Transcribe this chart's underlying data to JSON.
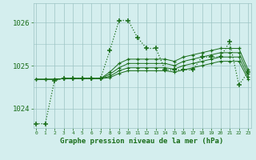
{
  "x": [
    0,
    1,
    2,
    3,
    4,
    5,
    6,
    7,
    8,
    9,
    10,
    11,
    12,
    13,
    14,
    15,
    16,
    17,
    18,
    19,
    20,
    21,
    22,
    23
  ],
  "line_dotted": [
    1023.65,
    1023.65,
    1024.65,
    1024.7,
    1024.7,
    1024.7,
    1024.7,
    1024.7,
    1025.35,
    1026.05,
    1026.05,
    1025.65,
    1025.4,
    1025.4,
    1024.9,
    1024.9,
    1024.9,
    1024.9,
    1025.2,
    1025.2,
    1025.2,
    1025.55,
    1024.55,
    1024.85
  ],
  "line_a": [
    1024.68,
    1024.68,
    1024.68,
    1024.7,
    1024.7,
    1024.7,
    1024.7,
    1024.7,
    1024.85,
    1025.05,
    1025.15,
    1025.15,
    1025.15,
    1025.15,
    1025.15,
    1025.1,
    1025.2,
    1025.25,
    1025.3,
    1025.35,
    1025.4,
    1025.4,
    1025.4,
    1024.9
  ],
  "line_b": [
    1024.68,
    1024.68,
    1024.68,
    1024.7,
    1024.7,
    1024.7,
    1024.7,
    1024.7,
    1024.8,
    1024.95,
    1025.05,
    1025.05,
    1025.05,
    1025.05,
    1025.05,
    1025.0,
    1025.1,
    1025.15,
    1025.2,
    1025.25,
    1025.3,
    1025.3,
    1025.3,
    1024.82
  ],
  "line_c": [
    1024.68,
    1024.68,
    1024.68,
    1024.7,
    1024.7,
    1024.7,
    1024.7,
    1024.7,
    1024.75,
    1024.88,
    1024.95,
    1024.95,
    1024.95,
    1024.95,
    1024.95,
    1024.92,
    1025.0,
    1025.05,
    1025.1,
    1025.15,
    1025.2,
    1025.2,
    1025.2,
    1024.74
  ],
  "line_d": [
    1024.68,
    1024.68,
    1024.68,
    1024.7,
    1024.7,
    1024.7,
    1024.7,
    1024.7,
    1024.72,
    1024.82,
    1024.88,
    1024.88,
    1024.88,
    1024.88,
    1024.88,
    1024.85,
    1024.9,
    1024.95,
    1025.0,
    1025.05,
    1025.1,
    1025.1,
    1025.1,
    1024.68
  ],
  "line_color": "#1a6e1a",
  "bg_color": "#d4eeee",
  "grid_color": "#9cc4c4",
  "ylim": [
    1023.55,
    1026.45
  ],
  "yticks": [
    1024,
    1025,
    1026
  ],
  "xlim": [
    -0.3,
    23.3
  ],
  "xlabel": "Graphe pression niveau de la mer (hPa)"
}
